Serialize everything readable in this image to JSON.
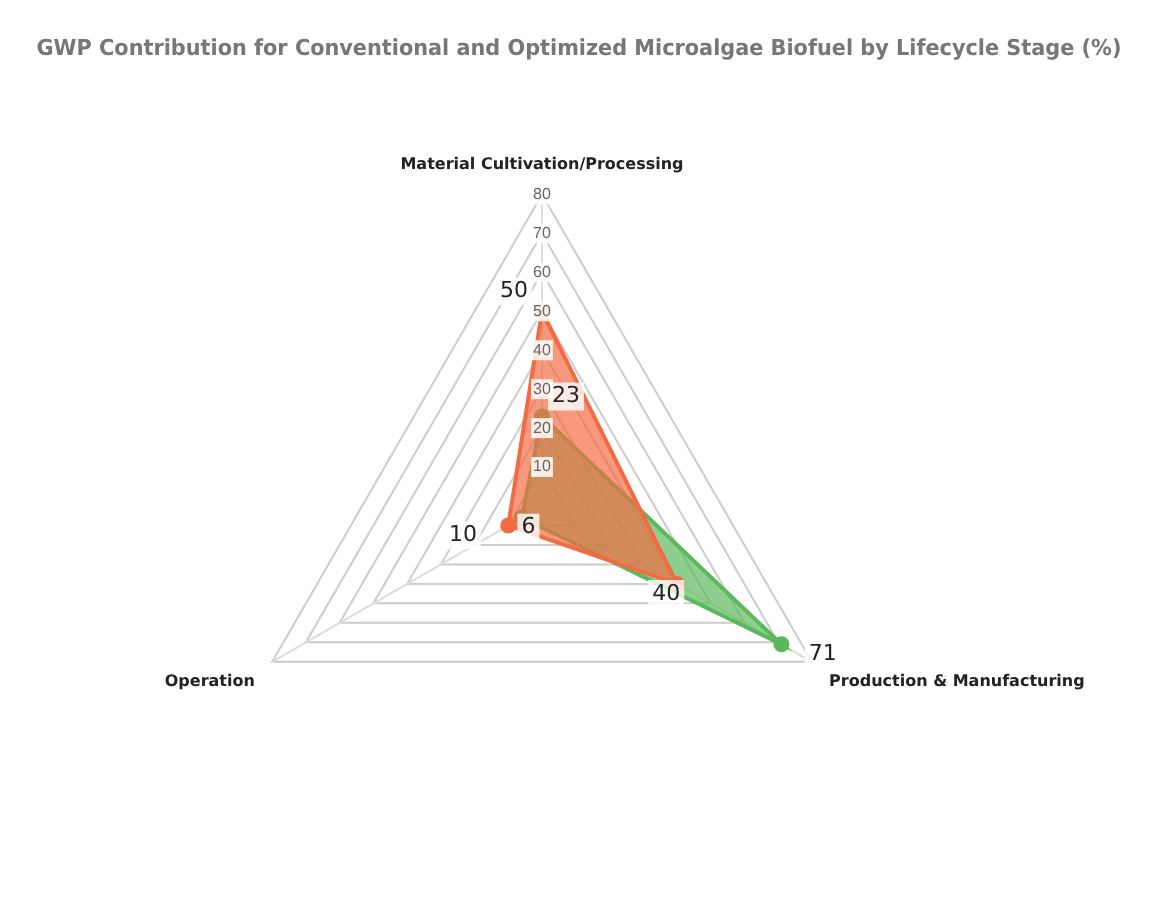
{
  "chart_data": {
    "type": "radar",
    "title": "GWP Contribution for Conventional and Optimized Microalgae Biofuel by Lifecycle Stage (%)",
    "categories": [
      "Material Cultivation/Processing",
      "Production & Manufacturing",
      "Operation"
    ],
    "series": [
      {
        "color": "#f26b43",
        "values": [
          50,
          40,
          10
        ]
      },
      {
        "color": "#5cb85c",
        "values": [
          23,
          71,
          6
        ]
      }
    ],
    "ylim": [
      0,
      80
    ],
    "yticks": [
      10,
      20,
      30,
      40,
      50,
      60,
      70,
      80
    ],
    "data_labels": true,
    "legend": false,
    "marker": "circle",
    "grid": true
  }
}
